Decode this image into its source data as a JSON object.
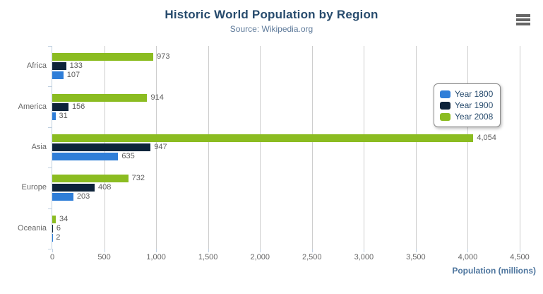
{
  "chart_data": {
    "type": "bar",
    "orientation": "horizontal",
    "title": "Historic World Population by Region",
    "subtitle": "Source: Wikipedia.org",
    "categories": [
      "Africa",
      "America",
      "Asia",
      "Europe",
      "Oceania"
    ],
    "series": [
      {
        "name": "Year 1800",
        "color": "#2f7ed8",
        "values": [
          107,
          31,
          635,
          203,
          2
        ]
      },
      {
        "name": "Year 1900",
        "color": "#0d233a",
        "values": [
          133,
          156,
          947,
          408,
          6
        ]
      },
      {
        "name": "Year 2008",
        "color": "#8bbc21",
        "values": [
          973,
          914,
          4054,
          732,
          34
        ]
      }
    ],
    "series_display_order_top_to_bottom": [
      "Year 2008",
      "Year 1900",
      "Year 1800"
    ],
    "xlabel": "Population (millions)",
    "xlim": [
      0,
      4500
    ],
    "tick_values": [
      0,
      500,
      1000,
      1500,
      2000,
      2500,
      3000,
      3500,
      4000,
      4500
    ],
    "x_tick_labels": [
      "0",
      "500",
      "1,000",
      "1,500",
      "2,000",
      "2,500",
      "3,000",
      "3,500",
      "4,000",
      "4,500"
    ],
    "grid": true,
    "data_labels": true,
    "legend": {
      "position": "right",
      "items": [
        "Year 1800",
        "Year 1900",
        "Year 2008"
      ]
    }
  },
  "icons": {
    "menu": "hamburger-menu-icon"
  },
  "colors": {
    "background": "#ffffff",
    "title": "#274b6d",
    "subtitle": "#5e7a9a",
    "axis_title": "#4d759e",
    "tick_label": "#666666",
    "data_label": "#5c5c5c",
    "grid": "#cdcdcd",
    "axis_line": "#c0d0e0",
    "legend_text": "#274b6d",
    "legend_border": "#8a8a8a",
    "menu_icon": "#666666"
  }
}
